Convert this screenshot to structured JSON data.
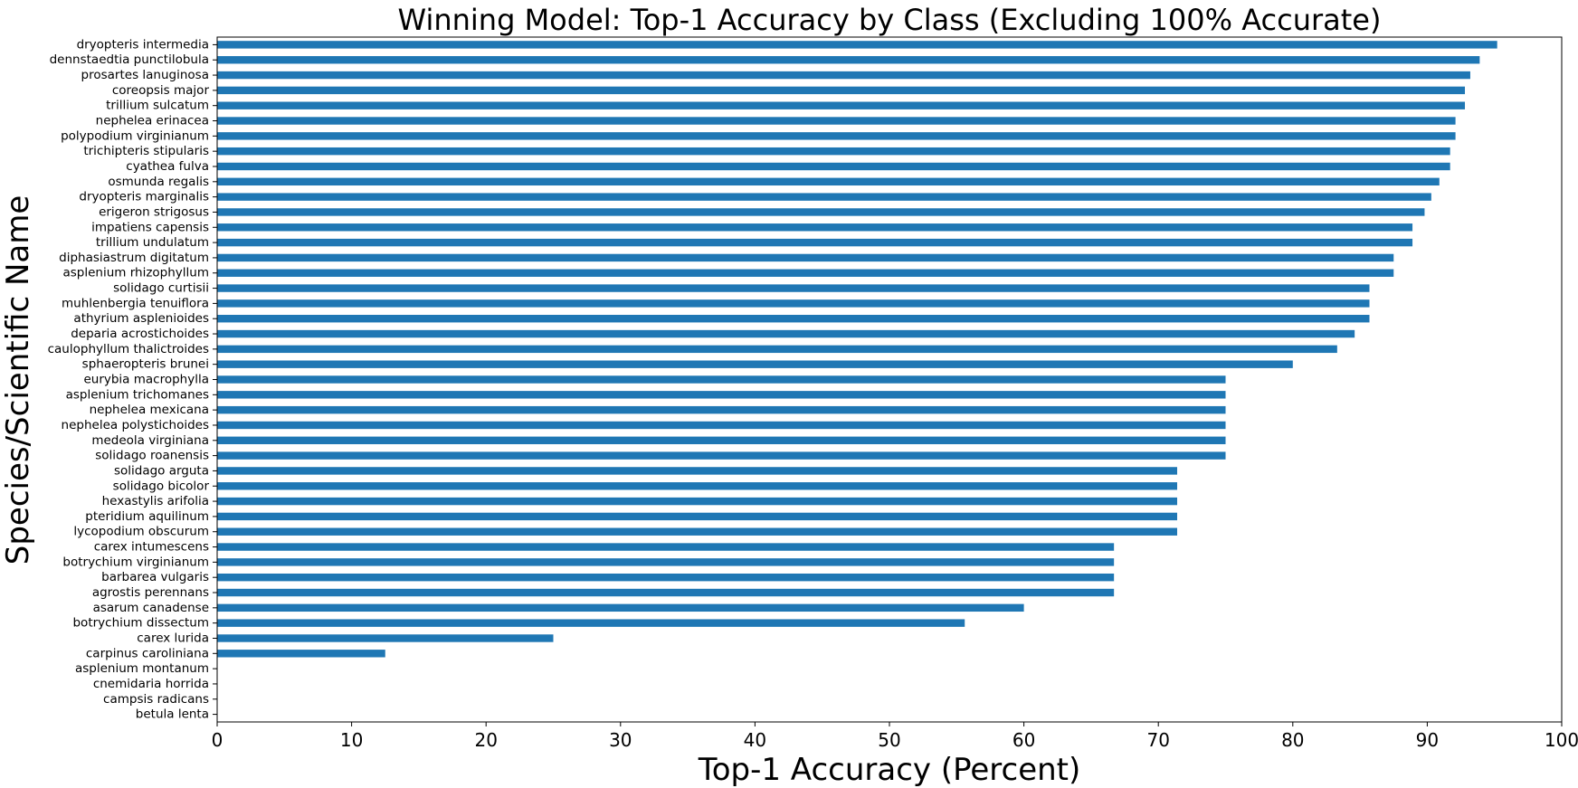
{
  "chart_data": {
    "type": "bar",
    "orientation": "horizontal",
    "title": "Winning Model: Top-1 Accuracy by Class (Excluding 100% Accurate)",
    "xlabel": "Top-1 Accuracy (Percent)",
    "ylabel": "Species/Scientific Name",
    "xlim": [
      0,
      100
    ],
    "xticks": [
      0,
      10,
      20,
      30,
      40,
      50,
      60,
      70,
      80,
      90,
      100
    ],
    "grid": false,
    "legend": "none",
    "bar_color": "#1f77b4",
    "categories": [
      "dryopteris intermedia",
      "dennstaedtia punctilobula",
      "prosartes lanuginosa",
      "coreopsis major",
      "trillium sulcatum",
      "nephelea erinacea",
      "polypodium virginianum",
      "trichipteris stipularis",
      "cyathea fulva",
      "osmunda regalis",
      "dryopteris marginalis",
      "erigeron strigosus",
      "impatiens capensis",
      "trillium undulatum",
      "diphasiastrum digitatum",
      "asplenium rhizophyllum",
      "solidago curtisii",
      "muhlenbergia tenuiflora",
      "athyrium asplenioides",
      "deparia acrostichoides",
      "caulophyllum thalictroides",
      "sphaeropteris brunei",
      "eurybia macrophylla",
      "asplenium trichomanes",
      "nephelea mexicana",
      "nephelea polystichoides",
      "medeola virginiana",
      "solidago roanensis",
      "solidago arguta",
      "solidago bicolor",
      "hexastylis arifolia",
      "pteridium aquilinum",
      "lycopodium obscurum",
      "carex intumescens",
      "botrychium virginianum",
      "barbarea vulgaris",
      "agrostis perennans",
      "asarum canadense",
      "botrychium dissectum",
      "carex lurida",
      "carpinus caroliniana",
      "asplenium montanum",
      "cnemidaria horrida",
      "campsis radicans",
      "betula lenta"
    ],
    "values": [
      95.2,
      93.9,
      93.2,
      92.8,
      92.8,
      92.1,
      92.1,
      91.7,
      91.7,
      90.9,
      90.3,
      89.8,
      88.9,
      88.9,
      87.5,
      87.5,
      85.7,
      85.7,
      85.7,
      84.6,
      83.3,
      80.0,
      75.0,
      75.0,
      75.0,
      75.0,
      75.0,
      75.0,
      71.4,
      71.4,
      71.4,
      71.4,
      71.4,
      66.7,
      66.7,
      66.7,
      66.7,
      60.0,
      55.6,
      25.0,
      12.5,
      0,
      0,
      0,
      0
    ]
  }
}
